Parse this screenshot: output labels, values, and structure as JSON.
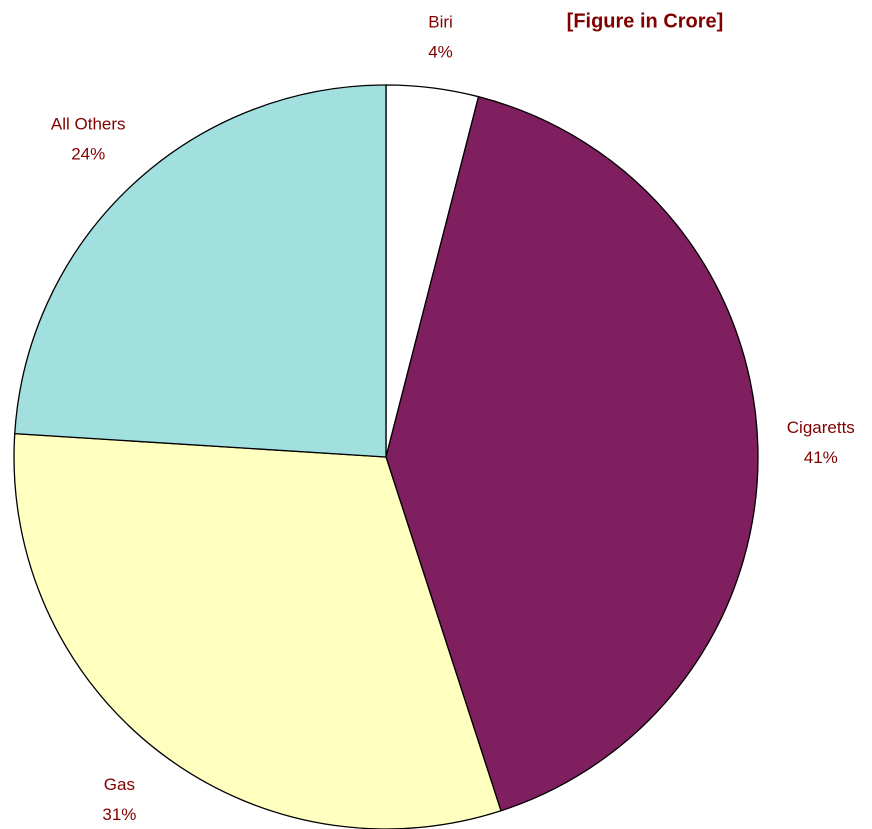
{
  "chart_data": {
    "type": "pie",
    "title": "[Figure in Crore]",
    "categories": [
      "Biri",
      "Cigaretts",
      "Gas",
      "All Others"
    ],
    "values": [
      4,
      41,
      31,
      24
    ],
    "value_labels": [
      "4%",
      "41%",
      "31%",
      "24%"
    ],
    "colors": [
      "#ffffff",
      "#7f1f5f",
      "#ffffc0",
      "#a2dfdf"
    ]
  }
}
